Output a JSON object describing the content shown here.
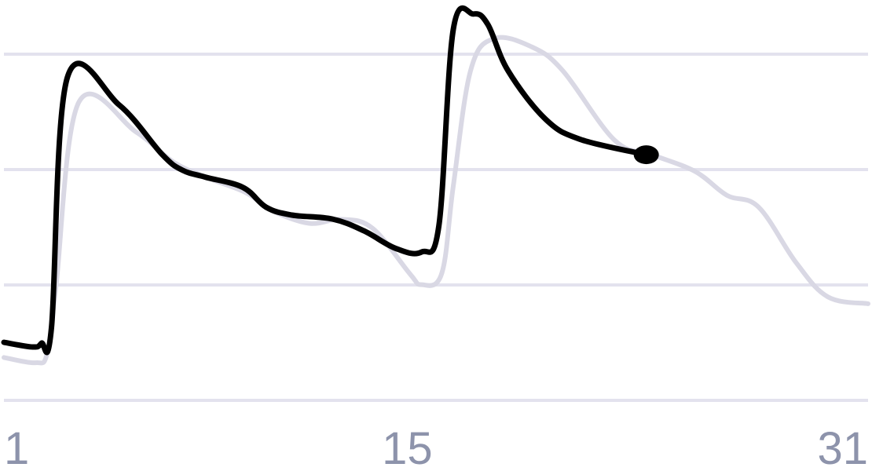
{
  "chart_data": {
    "type": "line",
    "x_ticks": [
      1,
      15,
      31
    ],
    "xlim": [
      1,
      31
    ],
    "ylim": [
      0,
      100
    ],
    "grid": true,
    "gridlines": [
      0,
      35,
      70,
      105
    ],
    "series": [
      {
        "style": "current",
        "color": "#000000",
        "x": [
          1,
          2,
          2.3,
          2.65,
          3.2,
          5,
          6.5,
          7.2,
          8,
          9.3,
          10.1,
          11,
          12.4,
          13.5,
          14.6,
          15.5,
          16.1,
          16.6,
          17.3,
          17.8,
          18.5,
          19.8,
          21,
          23.3
        ],
        "y": [
          17.6,
          16.2,
          17.3,
          22,
          97.9,
          89.6,
          74.5,
          69.8,
          67.7,
          64.6,
          58.6,
          56.2,
          55,
          51.4,
          46.1,
          45,
          53,
          112.5,
          117.2,
          114,
          100,
          85.3,
          79.2,
          74.5
        ]
      },
      {
        "style": "previous",
        "color": "#d9d8e4",
        "x": [
          1,
          2.1,
          2.5,
          2.8,
          3.6,
          5.6,
          6.9,
          8.1,
          9.4,
          10.3,
          11.6,
          12.7,
          13.8,
          15.1,
          15.5,
          16.2,
          16.6,
          17.2,
          18,
          19.3,
          20.4,
          22.2,
          23.5,
          25,
          26.1,
          27.2,
          28.5,
          29.6,
          31
        ],
        "y": [
          13,
          11.4,
          14.2,
          34,
          90.4,
          81.3,
          72.2,
          67.4,
          63,
          57.6,
          53.7,
          54.9,
          52.2,
          38.3,
          35.1,
          38.5,
          65,
          100,
          109.7,
          107.3,
          100,
          78.9,
          74.5,
          69.4,
          62.2,
          58.6,
          41.8,
          31.4,
          29.3
        ]
      }
    ],
    "end_marker": {
      "x": 23.3,
      "y": 74.5
    }
  },
  "colors": {
    "grid": "#e3e2ee",
    "tick_label": "#8d93ab",
    "background": "#ffffff"
  }
}
